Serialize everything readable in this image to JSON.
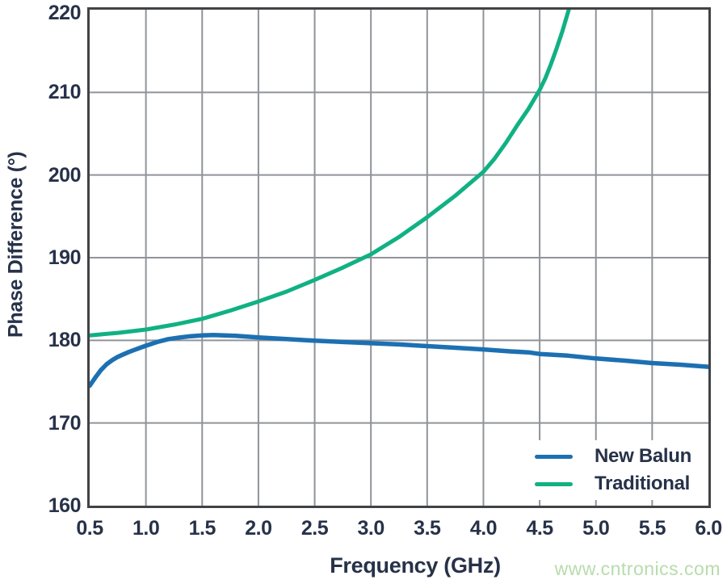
{
  "watermark": "www.cntronics.com",
  "colors": {
    "background": "#ffffff",
    "text": "#273249",
    "grid": "#909399",
    "border": "#414345",
    "legend_background": "#ffffff",
    "watermark": "#b7dcab",
    "new_balun": "#1c70b2",
    "traditional": "#10b183"
  },
  "chart_data": {
    "type": "line",
    "title": "",
    "xlabel": "Frequency (GHz)",
    "ylabel": "Phase Difference (°)",
    "xlim": [
      0.5,
      6.0
    ],
    "ylim": [
      160,
      220
    ],
    "grid": true,
    "legend_position": "lower right",
    "xticks": [
      0.5,
      1.0,
      1.5,
      2.0,
      2.5,
      3.0,
      3.5,
      4.0,
      4.5,
      5.0,
      5.5,
      6.0
    ],
    "xtick_labels": [
      "0.5",
      "1.0",
      "1.5",
      "2.0",
      "2.5",
      "3.0",
      "3.5",
      "4.0",
      "4.5",
      "5.0",
      "5.5",
      "6.0"
    ],
    "yticks": [
      160,
      170,
      180,
      190,
      200,
      210,
      220
    ],
    "ytick_labels": [
      "160",
      "170",
      "180",
      "190",
      "200",
      "210",
      "220"
    ],
    "series": [
      {
        "name": "New Balun",
        "color": "#1c70b2",
        "points": [
          [
            0.5,
            174.5
          ],
          [
            0.55,
            175.5
          ],
          [
            0.6,
            176.4
          ],
          [
            0.65,
            177.1
          ],
          [
            0.7,
            177.6
          ],
          [
            0.75,
            178.0
          ],
          [
            0.8,
            178.3
          ],
          [
            0.85,
            178.6
          ],
          [
            0.9,
            178.85
          ],
          [
            0.95,
            179.1
          ],
          [
            1.0,
            179.35
          ],
          [
            1.1,
            179.8
          ],
          [
            1.2,
            180.15
          ],
          [
            1.3,
            180.35
          ],
          [
            1.4,
            180.5
          ],
          [
            1.5,
            180.6
          ],
          [
            1.6,
            180.65
          ],
          [
            1.7,
            180.6
          ],
          [
            1.8,
            180.55
          ],
          [
            1.9,
            180.45
          ],
          [
            2.0,
            180.35
          ],
          [
            2.25,
            180.15
          ],
          [
            2.5,
            179.95
          ],
          [
            2.75,
            179.8
          ],
          [
            3.0,
            179.65
          ],
          [
            3.25,
            179.5
          ],
          [
            3.5,
            179.3
          ],
          [
            3.75,
            179.1
          ],
          [
            4.0,
            178.9
          ],
          [
            4.25,
            178.65
          ],
          [
            4.4,
            178.55
          ],
          [
            4.5,
            178.35
          ],
          [
            4.75,
            178.15
          ],
          [
            5.0,
            177.8
          ],
          [
            5.25,
            177.55
          ],
          [
            5.5,
            177.25
          ],
          [
            5.75,
            177.05
          ],
          [
            6.0,
            176.8
          ]
        ]
      },
      {
        "name": "Traditional",
        "color": "#10b183",
        "points": [
          [
            0.5,
            180.6
          ],
          [
            0.75,
            180.9
          ],
          [
            1.0,
            181.3
          ],
          [
            1.25,
            181.9
          ],
          [
            1.5,
            182.6
          ],
          [
            1.75,
            183.6
          ],
          [
            2.0,
            184.7
          ],
          [
            2.25,
            185.9
          ],
          [
            2.5,
            187.3
          ],
          [
            2.75,
            188.8
          ],
          [
            3.0,
            190.4
          ],
          [
            3.25,
            192.5
          ],
          [
            3.5,
            194.9
          ],
          [
            3.75,
            197.5
          ],
          [
            4.0,
            200.4
          ],
          [
            4.1,
            202.0
          ],
          [
            4.2,
            203.9
          ],
          [
            4.3,
            206.0
          ],
          [
            4.4,
            208.0
          ],
          [
            4.5,
            210.3
          ],
          [
            4.55,
            211.7
          ],
          [
            4.6,
            213.4
          ],
          [
            4.65,
            215.3
          ],
          [
            4.7,
            217.3
          ],
          [
            4.75,
            219.6
          ],
          [
            4.78,
            221.0
          ]
        ]
      }
    ]
  }
}
